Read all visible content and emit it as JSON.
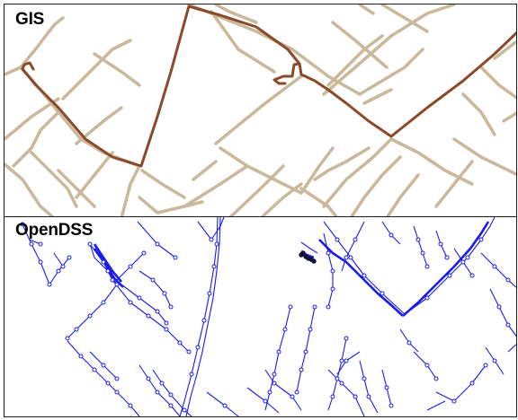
{
  "panels": {
    "gis": {
      "label": "GIS"
    },
    "opendss": {
      "label": "OpenDSS"
    }
  },
  "colors": {
    "gis_street": "#c9b99a",
    "gis_feeder": "#8a4a2a",
    "dss_line": "#1a1aee",
    "dss_node": "#1a1aee",
    "border": "#1a1a1a"
  },
  "icons": {
    "node_marker": "small-circle-icon"
  }
}
